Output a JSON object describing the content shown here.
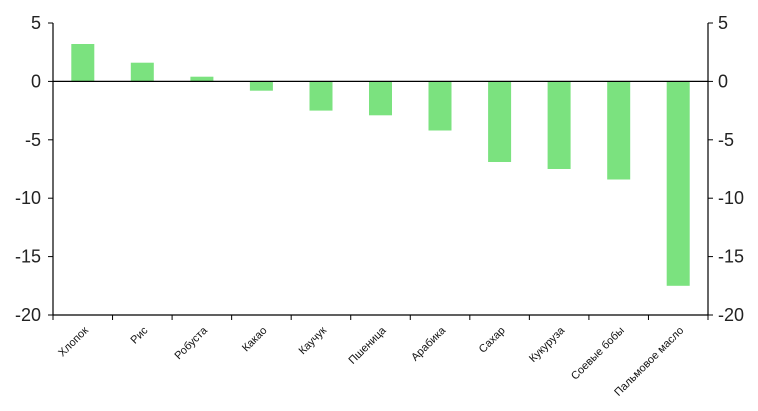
{
  "chart_data": {
    "type": "bar",
    "title": "",
    "xlabel": "",
    "ylabel": "",
    "categories": [
      "Хлопок",
      "Рис",
      "Робуста",
      "Какао",
      "Каучук",
      "Пшеница",
      "Арабика",
      "Сахар",
      "Кукуруза",
      "Соевые бобы",
      "Пальмовое масло"
    ],
    "values": [
      3.2,
      1.6,
      0.4,
      -0.8,
      -2.5,
      -2.9,
      -4.2,
      -6.9,
      -7.5,
      -8.4,
      -17.5
    ],
    "ylim": [
      -20,
      5
    ],
    "yticks": [
      "5",
      "0",
      "-5",
      "-10",
      "-15",
      "-20"
    ],
    "ytick_values": [
      5,
      0,
      -5,
      -10,
      -15,
      -20
    ],
    "grid": false,
    "bar_color": "#7be27f",
    "axis_color": "#000000"
  }
}
